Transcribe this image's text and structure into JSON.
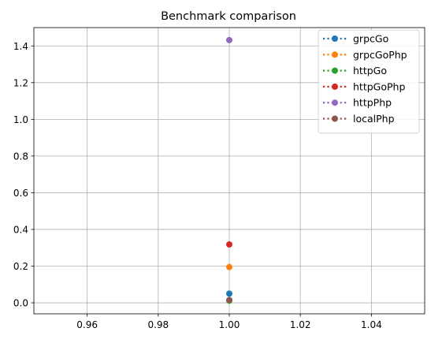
{
  "chart_data": {
    "type": "line",
    "title": "Benchmark comparison",
    "xlabel": "",
    "ylabel": "",
    "xlim": [
      0.945,
      1.055
    ],
    "ylim": [
      -0.06,
      1.5
    ],
    "xticks": [
      0.96,
      0.98,
      1.0,
      1.02,
      1.04
    ],
    "xtick_labels": [
      "0.96",
      "0.98",
      "1.00",
      "1.02",
      "1.04"
    ],
    "yticks": [
      0.0,
      0.2,
      0.4,
      0.6,
      0.8,
      1.0,
      1.2,
      1.4
    ],
    "ytick_labels": [
      "0.0",
      "0.2",
      "0.4",
      "0.6",
      "0.8",
      "1.0",
      "1.2",
      "1.4"
    ],
    "grid": true,
    "legend_position": "top-right",
    "series": [
      {
        "name": "grpcGo",
        "color": "#1f77b4",
        "x": [
          1.0
        ],
        "y": [
          0.05
        ]
      },
      {
        "name": "grpcGoPhp",
        "color": "#ff7f0e",
        "x": [
          1.0
        ],
        "y": [
          0.195
        ]
      },
      {
        "name": "httpGo",
        "color": "#2ca02c",
        "x": [
          1.0
        ],
        "y": [
          0.012
        ]
      },
      {
        "name": "httpGoPhp",
        "color": "#d62728",
        "x": [
          1.0
        ],
        "y": [
          0.318
        ]
      },
      {
        "name": "httpPhp",
        "color": "#9467bd",
        "x": [
          1.0
        ],
        "y": [
          1.432
        ]
      },
      {
        "name": "localPhp",
        "color": "#8c564b",
        "x": [
          1.0
        ],
        "y": [
          0.015
        ]
      }
    ]
  }
}
